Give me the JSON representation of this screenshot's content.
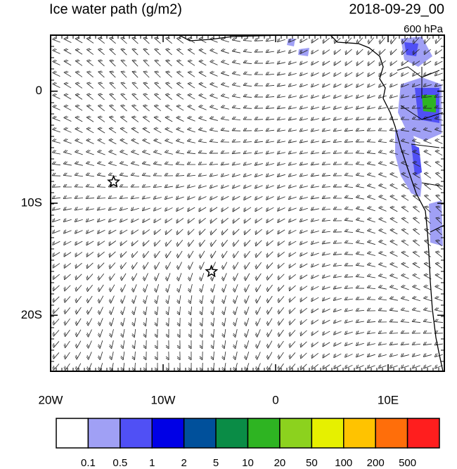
{
  "title": "Ice water path (g/m2)",
  "date": "2018-09-29_00",
  "level": "600 hPa",
  "map": {
    "lonlim": [
      -20,
      15
    ],
    "latlim": [
      -25,
      5
    ],
    "lonticks": [
      {
        "value": -20,
        "label": "20W"
      },
      {
        "value": -10,
        "label": "10W"
      },
      {
        "value": 0,
        "label": "0"
      },
      {
        "value": 10,
        "label": "10E"
      }
    ],
    "latticks": [
      {
        "value": 0,
        "label": "0"
      },
      {
        "value": -10,
        "label": "10S"
      },
      {
        "value": -20,
        "label": "20S"
      }
    ],
    "markers": [
      {
        "lon": -14.4,
        "lat": -8.1
      },
      {
        "lon": -5.7,
        "lat": -16.1
      }
    ]
  },
  "colorbar": {
    "levels": [
      0.1,
      0.5,
      1,
      2,
      5,
      10,
      20,
      50,
      100,
      200,
      500
    ],
    "colors": [
      "#ffffff",
      "#a0a0f5",
      "#5050f5",
      "#0000e6",
      "#00509b",
      "#0a8c46",
      "#2eb422",
      "#8cd21e",
      "#e6f000",
      "#ffc300",
      "#ff6e0a",
      "#ff1e1e"
    ]
  }
}
